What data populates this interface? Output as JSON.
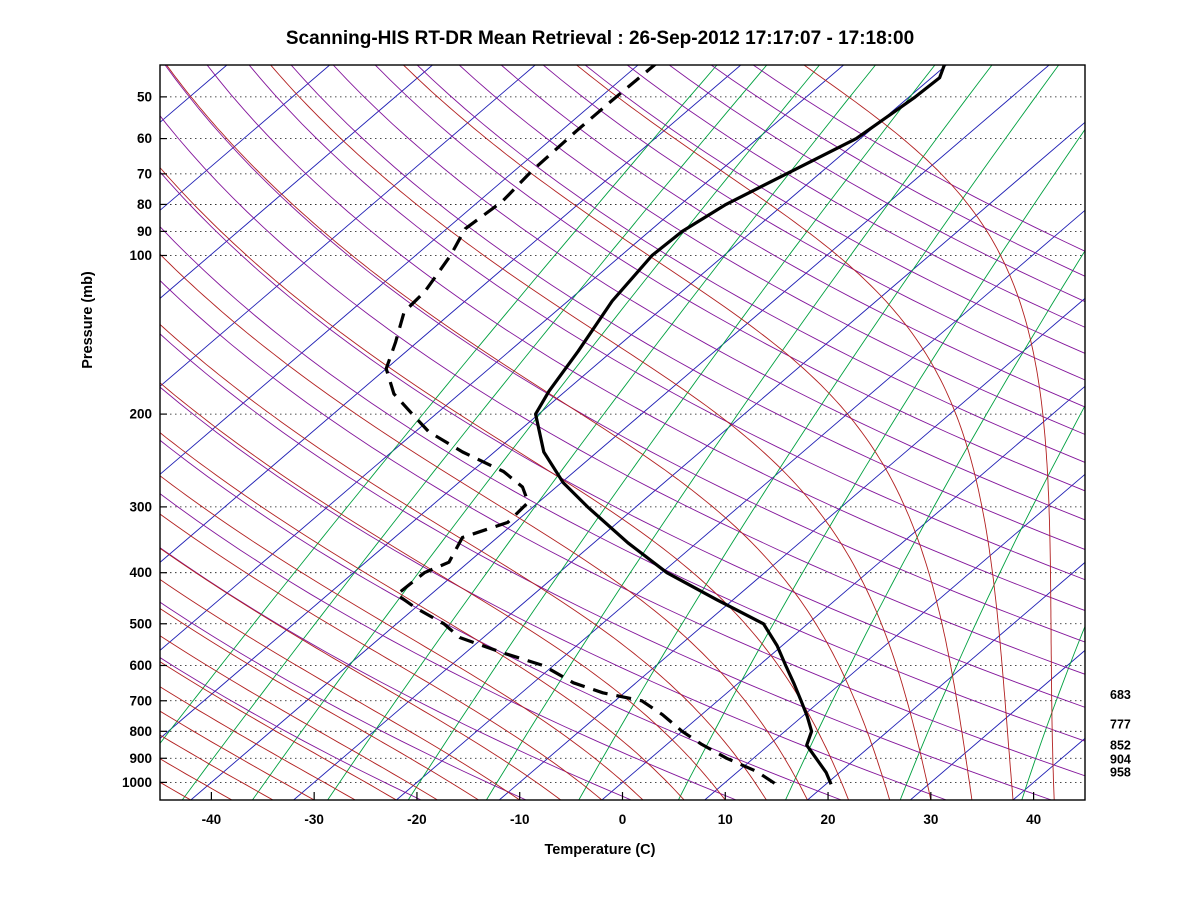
{
  "figure": {
    "title": "Scanning-HIS RT-DR Mean Retrieval : 26-Sep-2012 17:17:07 - 17:18:00",
    "xlabel": "Temperature (C)",
    "ylabel": "Pressure (mb)"
  },
  "chart_data": {
    "type": "line",
    "subtype": "skew-t-log-p",
    "title": "Scanning-HIS RT-DR Mean Retrieval : 26-Sep-2012 17:17:07 - 17:18:00",
    "xlabel": "Temperature (C)",
    "ylabel": "Pressure (mb)",
    "x_ticks": [
      -40,
      -30,
      -20,
      -10,
      0,
      10,
      20,
      30,
      40
    ],
    "y_ticks": [
      50,
      60,
      70,
      80,
      90,
      100,
      200,
      300,
      400,
      500,
      600,
      700,
      800,
      900,
      1000
    ],
    "x_range": [
      -45,
      45
    ],
    "p_range": [
      43.5,
      1080
    ],
    "skew_deg_per_ln_p": 26,
    "grid": "horizontal-dotted",
    "legend": "none",
    "right_pressure_labels": [
      "683",
      "777",
      "852",
      "904",
      "958"
    ],
    "series": [
      {
        "name": "temperature",
        "line": "solid",
        "color": "#000000",
        "width": 3.2,
        "points": [
          [
            43,
            -50.4
          ],
          [
            46,
            -49.2
          ],
          [
            50,
            -49.4
          ],
          [
            60,
            -50.4
          ],
          [
            70,
            -53.2
          ],
          [
            80,
            -55.6
          ],
          [
            90,
            -56.8
          ],
          [
            100,
            -57.0
          ],
          [
            122,
            -55.7
          ],
          [
            152,
            -53.3
          ],
          [
            181,
            -51.6
          ],
          [
            200,
            -50.3
          ],
          [
            236,
            -45.2
          ],
          [
            270,
            -39.8
          ],
          [
            300,
            -34.7
          ],
          [
            351,
            -26.7
          ],
          [
            400,
            -19.5
          ],
          [
            450,
            -11.6
          ],
          [
            500,
            -4.3
          ],
          [
            550,
            -0.5
          ],
          [
            600,
            2.6
          ],
          [
            650,
            5.5
          ],
          [
            700,
            8.1
          ],
          [
            750,
            10.5
          ],
          [
            800,
            12.6
          ],
          [
            850,
            13.7
          ],
          [
            900,
            16.1
          ],
          [
            958,
            18.7
          ],
          [
            1008,
            20.5
          ]
        ]
      },
      {
        "name": "dewpoint",
        "line": "dashed",
        "color": "#000000",
        "width": 3.2,
        "points": [
          [
            43,
            -78.4
          ],
          [
            51,
            -78.5
          ],
          [
            58,
            -78.5
          ],
          [
            69,
            -78.3
          ],
          [
            79,
            -77.7
          ],
          [
            89,
            -78.2
          ],
          [
            100,
            -76.6
          ],
          [
            117,
            -75.0
          ],
          [
            128,
            -74.7
          ],
          [
            146,
            -72.1
          ],
          [
            164,
            -70.0
          ],
          [
            183,
            -66.4
          ],
          [
            200,
            -62.3
          ],
          [
            216,
            -58.7
          ],
          [
            236,
            -53.1
          ],
          [
            257,
            -46.9
          ],
          [
            275,
            -43.3
          ],
          [
            294,
            -41.0
          ],
          [
            321,
            -40.7
          ],
          [
            343,
            -43.4
          ],
          [
            382,
            -41.9
          ],
          [
            400,
            -43.1
          ],
          [
            440,
            -43.3
          ],
          [
            466,
            -40.0
          ],
          [
            500,
            -35.4
          ],
          [
            531,
            -32.3
          ],
          [
            568,
            -26.3
          ],
          [
            600,
            -21.0
          ],
          [
            647,
            -16.1
          ],
          [
            676,
            -12.1
          ],
          [
            700,
            -7.4
          ],
          [
            744,
            -3.8
          ],
          [
            800,
            0
          ],
          [
            847,
            3.4
          ],
          [
            900,
            7.4
          ],
          [
            953,
            11.8
          ],
          [
            1009,
            15.2
          ]
        ]
      }
    ],
    "background_lines": {
      "isotherms": {
        "color": "#1f1fb4",
        "from": -120,
        "to": 40,
        "step": 10
      },
      "dry_adiabats": {
        "color": "#83159b",
        "theta_from": 250,
        "theta_to": 500,
        "step": 10
      },
      "moist_adiabats": {
        "color": "#b22020",
        "surface_t_from": -44,
        "surface_t_to": 44,
        "step": 4
      },
      "mixing_ratio": {
        "color": "#00a040",
        "values_g_kg": [
          0.05,
          0.1,
          0.2,
          0.4,
          0.8,
          1.5,
          3,
          6,
          12,
          24,
          48
        ]
      }
    }
  }
}
